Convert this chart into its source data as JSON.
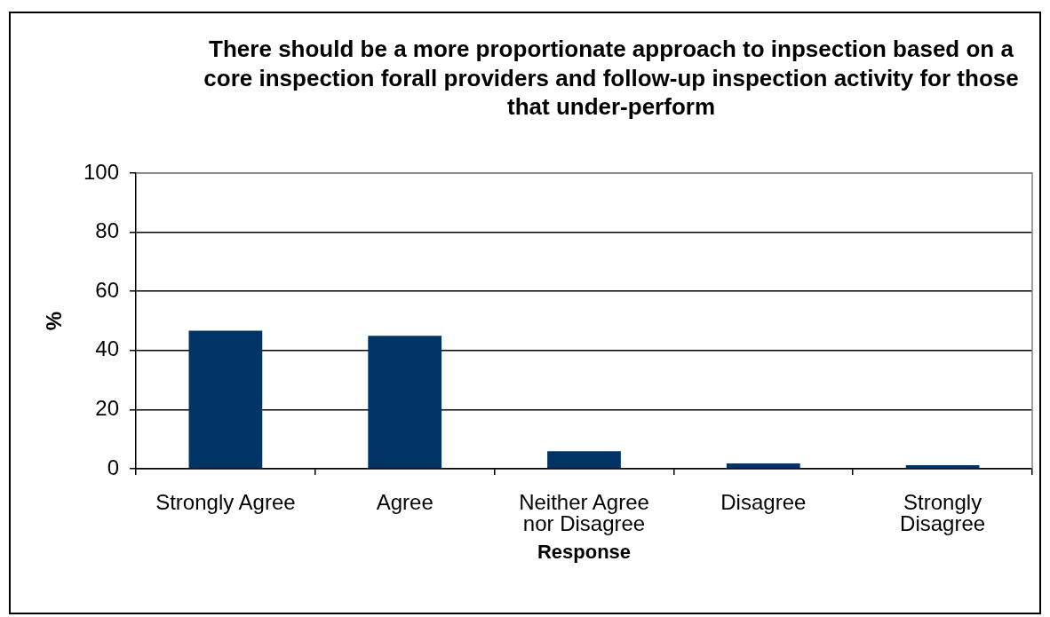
{
  "chart_data": {
    "type": "bar",
    "title": "There should be a more proportionate approach to inpsection based on a core inspection forall providers and follow-up inspection activity for those that under-perform",
    "xlabel": "Response",
    "ylabel": "%",
    "categories": [
      "Strongly Agree",
      "Agree",
      "Neither Agree nor Disagree",
      "Disagree",
      "Strongly Disagree"
    ],
    "values": [
      46.7,
      45,
      5.9,
      1.8,
      1.2
    ],
    "color": "#003366",
    "ylim": [
      0,
      100
    ],
    "yticks": [
      0,
      20,
      40,
      60,
      80,
      100
    ],
    "grid": "y"
  }
}
